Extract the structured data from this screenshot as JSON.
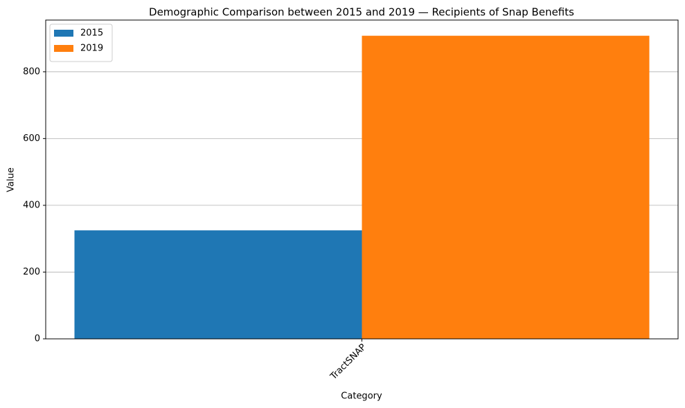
{
  "chart_data": {
    "type": "bar",
    "title": "Demographic Comparison between 2015 and 2019 — Recipients of Snap Benefits",
    "x_label": "Category",
    "y_label": "Value",
    "categories": [
      "TractSNAP"
    ],
    "series": [
      {
        "name": "2015",
        "color": "#1f77b4",
        "values": [
          325
        ]
      },
      {
        "name": "2019",
        "color": "#ff7f0e",
        "values": [
          908
        ]
      }
    ],
    "ylim": [
      0,
      955
    ],
    "yticks": [
      0,
      200,
      400,
      600,
      800
    ],
    "grid": "y",
    "legend": "upper left",
    "x_tick_rotation": -45
  }
}
